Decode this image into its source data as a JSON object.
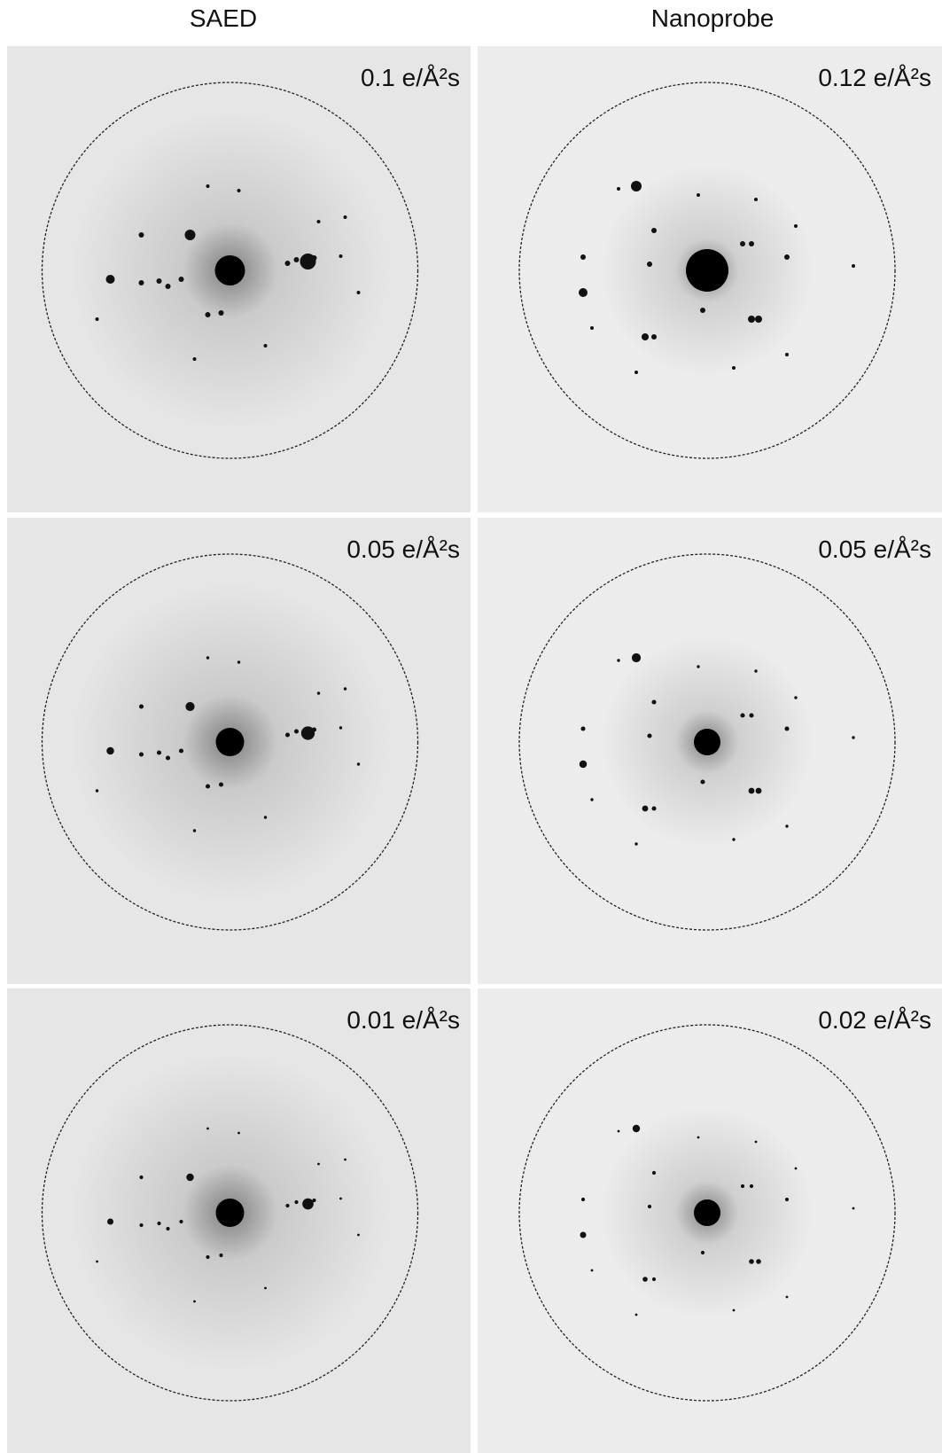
{
  "columns": [
    "SAED",
    "Nanoprobe"
  ],
  "panels": [
    {
      "label": "0.1 e/Å²s"
    },
    {
      "label": "0.12 e/Å²s"
    },
    {
      "label": "0.05 e/Å²s"
    },
    {
      "label": "0.05 e/Å²s"
    },
    {
      "label": "0.01 e/Å²s"
    },
    {
      "label": "0.02 e/Å²s"
    }
  ]
}
